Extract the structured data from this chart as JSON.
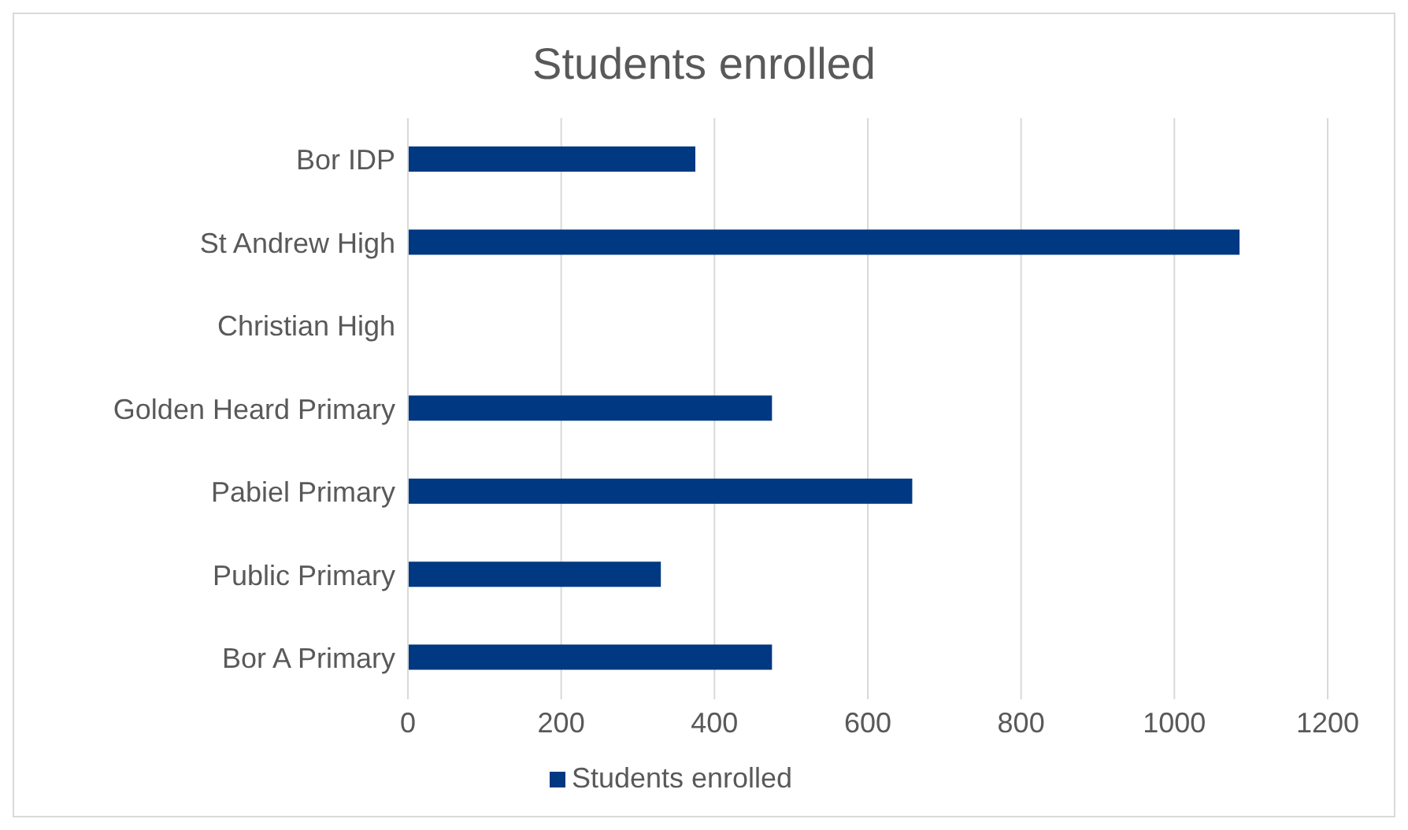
{
  "chart_data": {
    "type": "bar",
    "orientation": "horizontal",
    "title": "Students enrolled",
    "categories": [
      "Bor IDP",
      "St Andrew High",
      "Christian High",
      "Golden Heard Primary",
      "Pabiel Primary",
      "Public Primary",
      "Bor A Primary"
    ],
    "series": [
      {
        "name": "Students enrolled",
        "color": "#003882",
        "values": [
          375,
          1085,
          0,
          475,
          658,
          330,
          475
        ]
      }
    ],
    "xlim": [
      0,
      1200
    ],
    "xticks": [
      0,
      200,
      400,
      600,
      800,
      1000,
      1200
    ],
    "grid": "x",
    "legend": "bottom"
  }
}
